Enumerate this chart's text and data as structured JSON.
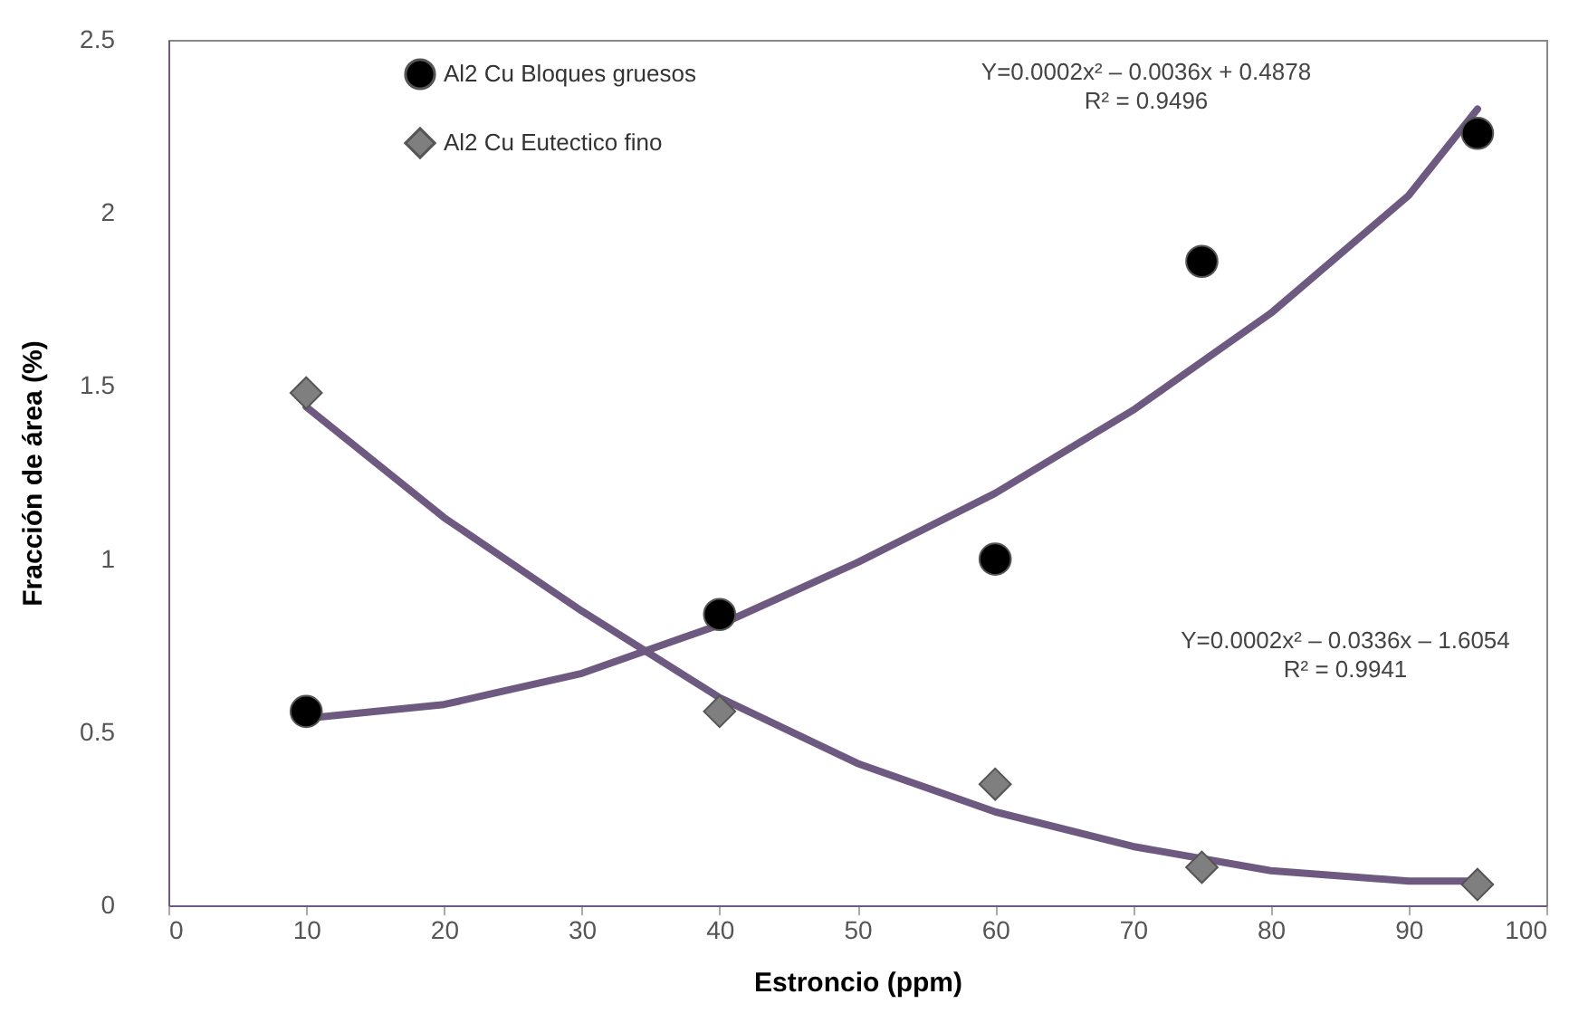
{
  "chart_data": {
    "type": "scatter",
    "xlabel": "Estroncio (ppm)",
    "ylabel": "Fracción de área (%)",
    "xlim": [
      0,
      100
    ],
    "xticks": [
      0,
      10,
      20,
      30,
      40,
      50,
      60,
      70,
      80,
      90,
      100
    ],
    "ylim": [
      0,
      2.5
    ],
    "yticks": [
      0,
      0.5,
      1,
      1.5,
      2,
      2.5
    ],
    "grid": false,
    "legend": "top left",
    "series": [
      {
        "name": "Al2 Cu Bloques gruesos",
        "marker": "circle",
        "color": "#000000",
        "x": [
          10,
          40,
          60,
          75,
          95
        ],
        "values": [
          0.56,
          0.84,
          1.0,
          1.86,
          2.23
        ]
      },
      {
        "name": "Al2 Cu Eutectico fino",
        "marker": "diamond",
        "color": "#7f7f7f",
        "x": [
          10,
          40,
          60,
          75,
          95
        ],
        "values": [
          1.48,
          0.56,
          0.35,
          0.11,
          0.06
        ]
      },
      {
        "type": "line",
        "marker": "none",
        "line_style": "solid",
        "color": "#6e5a80",
        "x": [
          10,
          20,
          30,
          40,
          50,
          60,
          70,
          80,
          90,
          95
        ],
        "values": [
          0.54,
          0.58,
          0.67,
          0.81,
          0.99,
          1.19,
          1.43,
          1.71,
          2.05,
          2.3
        ]
      },
      {
        "type": "line",
        "marker": "none",
        "line_style": "solid",
        "color": "#6e5a80",
        "x": [
          10,
          20,
          30,
          40,
          50,
          60,
          70,
          80,
          90,
          95
        ],
        "values": [
          1.44,
          1.12,
          0.85,
          0.6,
          0.41,
          0.27,
          0.17,
          0.1,
          0.07,
          0.07
        ]
      }
    ],
    "annotations": [
      "Y=0.0002x² – 0.0036x + 0.4878",
      "R² = 0.9496",
      "Y=0.0002x² – 0.0336x – 1.6054",
      "R² = 0.9941"
    ]
  }
}
